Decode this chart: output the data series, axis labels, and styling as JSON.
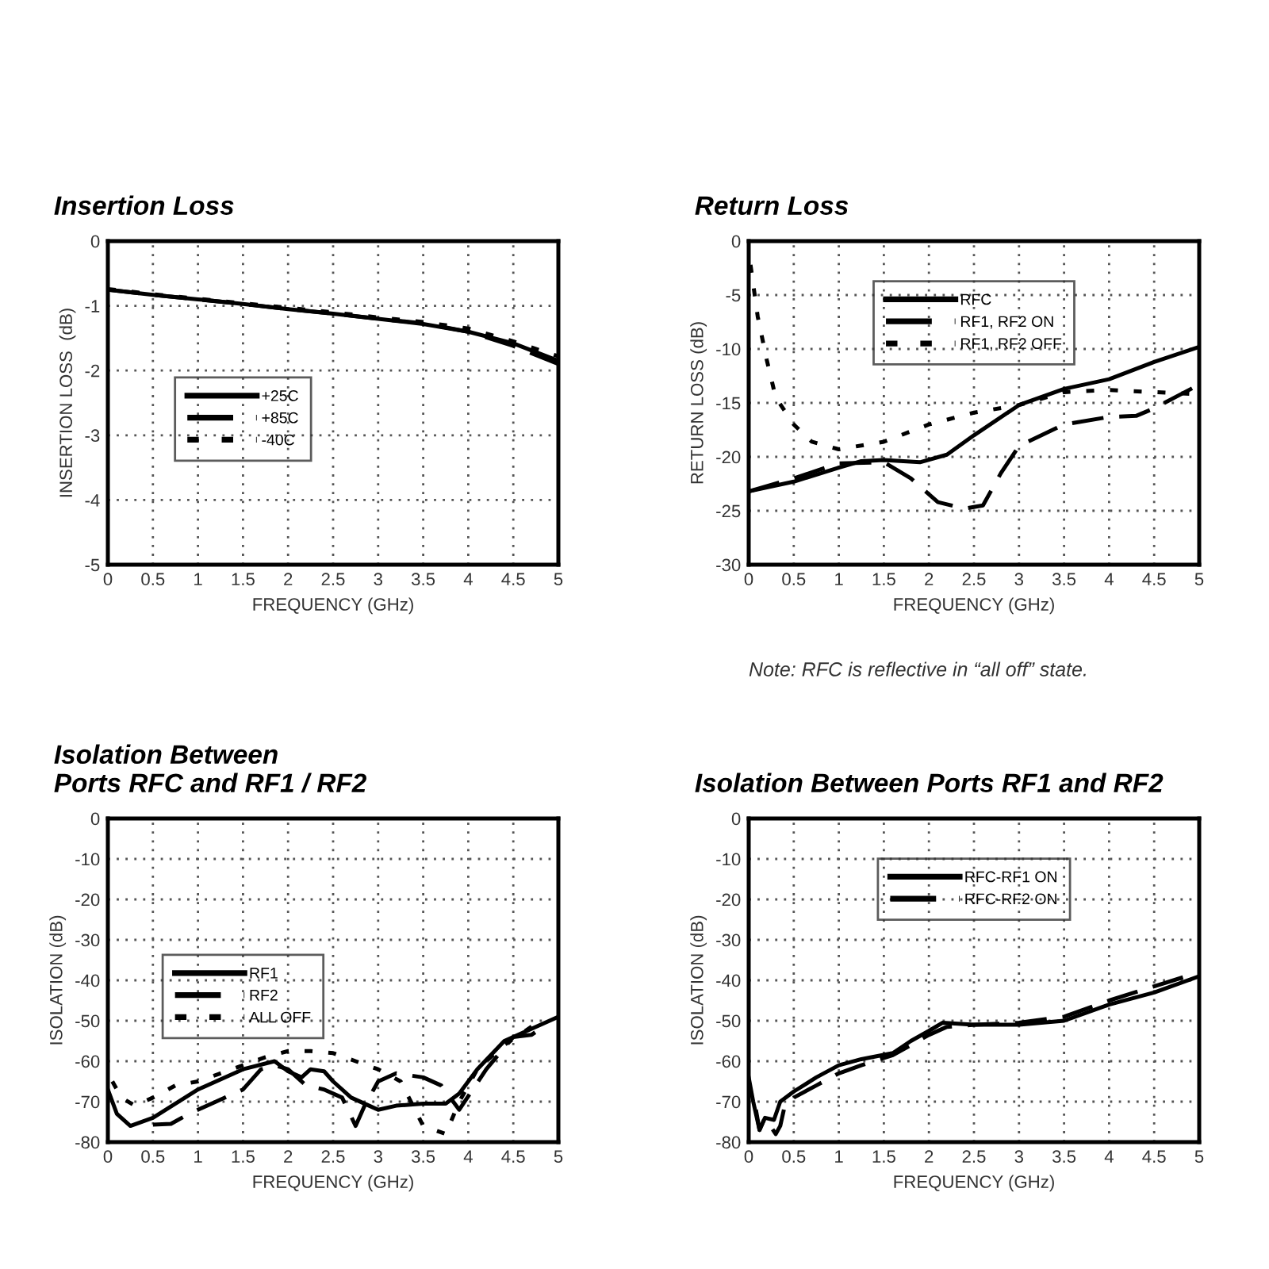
{
  "chart_data": [
    {
      "type": "line",
      "title": "Insertion Loss",
      "xlabel": "FREQUENCY (GHz)",
      "ylabel": "INSERTION LOSS  (dB)",
      "xlim": [
        0,
        5
      ],
      "ylim": [
        -5,
        0
      ],
      "xticks": [
        0,
        0.5,
        1,
        1.5,
        2,
        2.5,
        3,
        3.5,
        4,
        4.5,
        5
      ],
      "yticks": [
        -5,
        -4,
        -3,
        -2,
        -1,
        0
      ],
      "grid": true,
      "legend": "center",
      "x": [
        0,
        0.5,
        1,
        1.5,
        2,
        2.5,
        3,
        3.5,
        4,
        4.5,
        5
      ],
      "series": [
        {
          "name": "+25C",
          "color": "#000000",
          "line_style": "solid",
          "values": [
            -0.75,
            -0.83,
            -0.9,
            -0.97,
            -1.05,
            -1.12,
            -1.2,
            -1.28,
            -1.4,
            -1.58,
            -1.85
          ]
        },
        {
          "name": "+85C",
          "color": "#000000",
          "line_style": "dashed",
          "values": [
            -0.75,
            -0.83,
            -0.9,
            -0.97,
            -1.05,
            -1.12,
            -1.2,
            -1.27,
            -1.4,
            -1.62,
            -1.9
          ]
        },
        {
          "name": "-40C",
          "color": "#000000",
          "line_style": "dotted",
          "values": [
            -0.74,
            -0.82,
            -0.89,
            -0.96,
            -1.03,
            -1.1,
            -1.18,
            -1.25,
            -1.35,
            -1.55,
            -1.78
          ]
        }
      ]
    },
    {
      "type": "line",
      "title": "Return Loss",
      "xlabel": "FREQUENCY (GHz)",
      "ylabel": "RETURN LOSS (dB)",
      "xlim": [
        0,
        5
      ],
      "ylim": [
        -30,
        0
      ],
      "xticks": [
        0,
        0.5,
        1,
        1.5,
        2,
        2.5,
        3,
        3.5,
        4,
        4.5,
        5
      ],
      "yticks": [
        -30,
        -25,
        -20,
        -15,
        -10,
        -5,
        0
      ],
      "grid": true,
      "legend": "top",
      "annotations": [
        "Note: RFC is reflective in “all off” state."
      ],
      "series": [
        {
          "name": "RFC",
          "color": "#000000",
          "line_style": "solid",
          "x": [
            0,
            0.5,
            1,
            1.25,
            1.5,
            1.9,
            2.2,
            2.5,
            3,
            3.5,
            4,
            4.5,
            5
          ],
          "values": [
            -23.2,
            -22.3,
            -21,
            -20.4,
            -20.3,
            -20.5,
            -19.8,
            -18,
            -15.2,
            -13.7,
            -12.8,
            -11.2,
            -9.8
          ]
        },
        {
          "name": "RF1, RF2 ON",
          "color": "#000000",
          "line_style": "dashed",
          "x": [
            0,
            0.5,
            1,
            1.5,
            1.8,
            2.1,
            2.4,
            2.6,
            2.8,
            3,
            3.5,
            4,
            4.3,
            4.5,
            5
          ],
          "values": [
            -23.2,
            -22,
            -20.6,
            -20.5,
            -22,
            -24.2,
            -24.8,
            -24.5,
            -21.5,
            -19,
            -17,
            -16.3,
            -16.2,
            -15.5,
            -13.3
          ]
        },
        {
          "name": "RF1, RF2 OFF",
          "color": "#000000",
          "line_style": "dotted",
          "x": [
            0.02,
            0.05,
            0.1,
            0.2,
            0.3,
            0.5,
            0.7,
            1,
            1.5,
            2,
            2.5,
            3,
            3.5,
            4,
            4.5,
            5
          ],
          "values": [
            -2.2,
            -4,
            -7,
            -11,
            -14.5,
            -17,
            -18.6,
            -19.3,
            -18.6,
            -17,
            -15.9,
            -15.2,
            -14,
            -13.8,
            -14,
            -14.2
          ]
        }
      ]
    },
    {
      "type": "line",
      "title": "Isolation Between\nPorts RFC and RF1 / RF2",
      "xlabel": "FREQUENCY (GHz)",
      "ylabel": "ISOLATION (dB)",
      "xlim": [
        0,
        5
      ],
      "ylim": [
        -80,
        0
      ],
      "xticks": [
        0,
        0.5,
        1,
        1.5,
        2,
        2.5,
        3,
        3.5,
        4,
        4.5,
        5
      ],
      "yticks": [
        -80,
        -70,
        -60,
        -50,
        -40,
        -30,
        -20,
        -10,
        0
      ],
      "grid": true,
      "legend": "center",
      "series": [
        {
          "name": "RF1",
          "color": "#000000",
          "line_style": "solid",
          "x": [
            0,
            0.1,
            0.25,
            0.5,
            1,
            1.5,
            1.85,
            2,
            2.15,
            2.25,
            2.4,
            2.5,
            2.7,
            2.9,
            3,
            3.2,
            3.5,
            3.75,
            3.9,
            4.1,
            4.4,
            4.7,
            5
          ],
          "values": [
            -67,
            -73,
            -76,
            -74,
            -67,
            -62,
            -60,
            -62.5,
            -64,
            -62,
            -62.5,
            -65,
            -69,
            -71,
            -72,
            -71,
            -70.5,
            -70.5,
            -68,
            -62,
            -55,
            -52,
            -49
          ]
        },
        {
          "name": "RF2",
          "color": "#000000",
          "line_style": "dashed",
          "x": [
            0.5,
            0.7,
            0.9,
            1.2,
            1.5,
            1.7,
            1.85,
            2,
            2.2,
            2.4,
            2.6,
            2.75,
            2.85,
            3,
            3.2,
            3.5,
            3.7,
            3.9,
            4.2,
            4.5,
            4.7,
            4.8
          ],
          "values": [
            -75.7,
            -75.5,
            -73,
            -70,
            -67,
            -62,
            -61,
            -62,
            -66,
            -67,
            -69,
            -76,
            -71,
            -65,
            -63,
            -64,
            -66,
            -72,
            -62,
            -54,
            -53.5,
            -52
          ]
        },
        {
          "name": "ALL OFF",
          "color": "#000000",
          "line_style": "dotted",
          "x": [
            0.05,
            0.15,
            0.3,
            0.5,
            0.75,
            1,
            1.25,
            1.5,
            1.75,
            2,
            2.25,
            2.5,
            2.75,
            3,
            3.25,
            3.5,
            3.75,
            3.9,
            4.1,
            4.4,
            4.8
          ],
          "values": [
            -65,
            -69,
            -71,
            -69,
            -66,
            -65,
            -63,
            -61,
            -59,
            -57.5,
            -57.5,
            -58,
            -60,
            -62,
            -65,
            -76,
            -78,
            -70,
            -62,
            -56,
            -50
          ]
        }
      ]
    },
    {
      "type": "line",
      "title": "Isolation Between Ports RF1 and RF2",
      "xlabel": "FREQUENCY (GHz)",
      "ylabel": "ISOLATION (dB)",
      "xlim": [
        0,
        5
      ],
      "ylim": [
        -80,
        0
      ],
      "xticks": [
        0,
        0.5,
        1,
        1.5,
        2,
        2.5,
        3,
        3.5,
        4,
        4.5,
        5
      ],
      "yticks": [
        -80,
        -70,
        -60,
        -50,
        -40,
        -30,
        -20,
        -10,
        0
      ],
      "grid": true,
      "legend": "top",
      "series": [
        {
          "name": "RFC-RF1 ON",
          "color": "#000000",
          "line_style": "solid",
          "x": [
            0,
            0.05,
            0.12,
            0.18,
            0.28,
            0.35,
            0.5,
            0.75,
            1,
            1.25,
            1.6,
            1.8,
            2,
            2.15,
            2.5,
            3,
            3.5,
            4,
            4.5,
            5
          ],
          "values": [
            -64,
            -70,
            -77,
            -74,
            -74.5,
            -70,
            -67.5,
            -64,
            -61,
            -59.5,
            -58,
            -55,
            -52.5,
            -50.5,
            -51,
            -51,
            -50,
            -46,
            -43,
            -39
          ]
        },
        {
          "name": "RFC-RF2 ON",
          "color": "#000000",
          "line_style": "dashed",
          "x": [
            0.08,
            0.12,
            0.18,
            0.3,
            0.35,
            0.4,
            0.5,
            0.75,
            1,
            1.25,
            1.6,
            1.8,
            2,
            2.2,
            2.5,
            3,
            3.5,
            4,
            4.5,
            5
          ],
          "values": [
            -72,
            -77,
            -74,
            -78,
            -76,
            -71,
            -69,
            -66,
            -63,
            -61,
            -58.5,
            -56,
            -53.5,
            -51.5,
            -51,
            -50.5,
            -49,
            -45,
            -41.5,
            -38
          ]
        }
      ]
    }
  ]
}
